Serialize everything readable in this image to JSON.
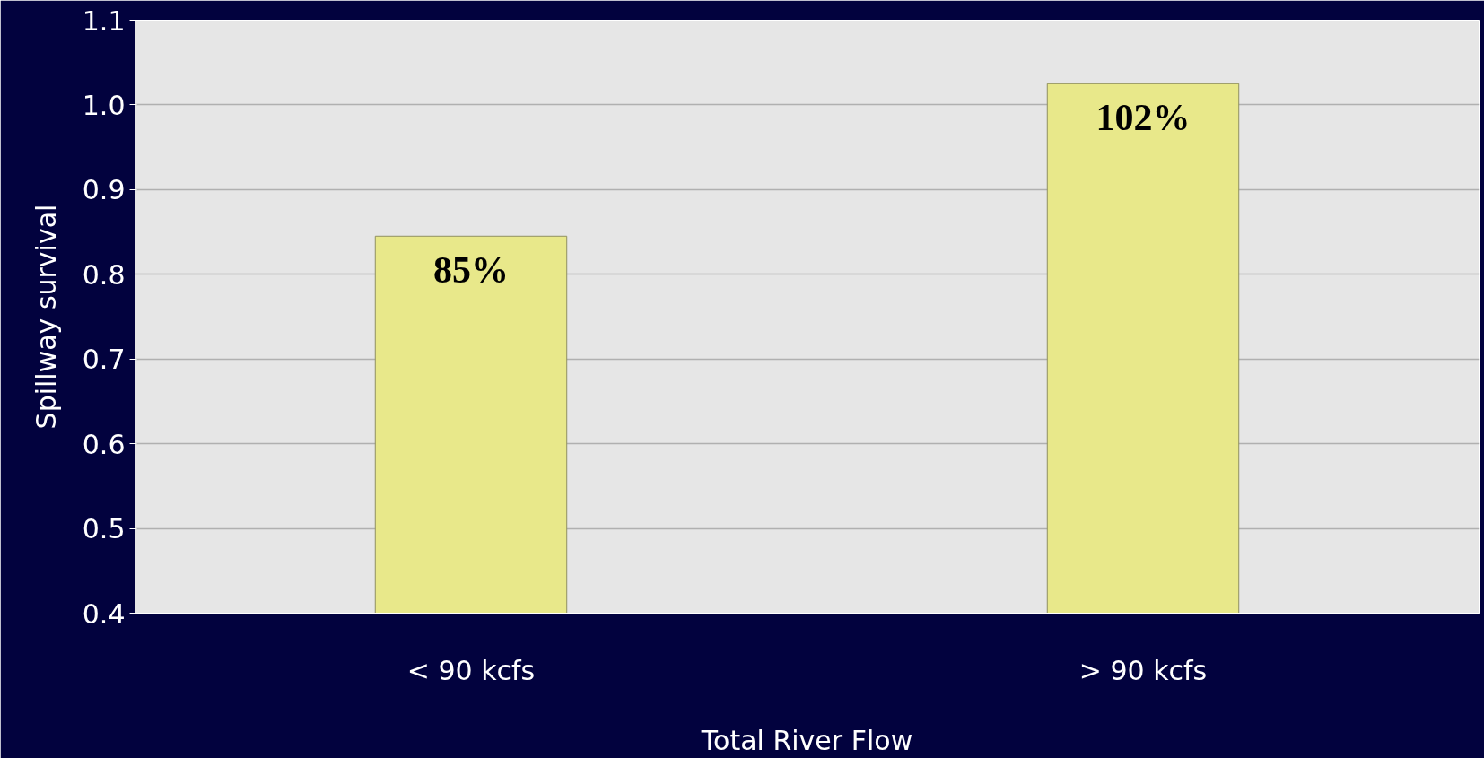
{
  "chart_data": {
    "type": "bar",
    "xlabel": "Total River Flow",
    "ylabel": "Spillway survival",
    "categories": [
      "< 90 kcfs",
      "> 90 kcfs"
    ],
    "values": [
      0.845,
      1.025
    ],
    "value_labels": [
      "85%",
      "102%"
    ],
    "color": "#e8e88a",
    "ylim": [
      0.4,
      1.1
    ],
    "yticks": [
      0.4,
      0.5,
      0.6,
      0.7,
      0.8,
      0.9,
      {
        "value": 1,
        "label": "1.0"
      },
      1.1
    ],
    "grid": "y"
  }
}
